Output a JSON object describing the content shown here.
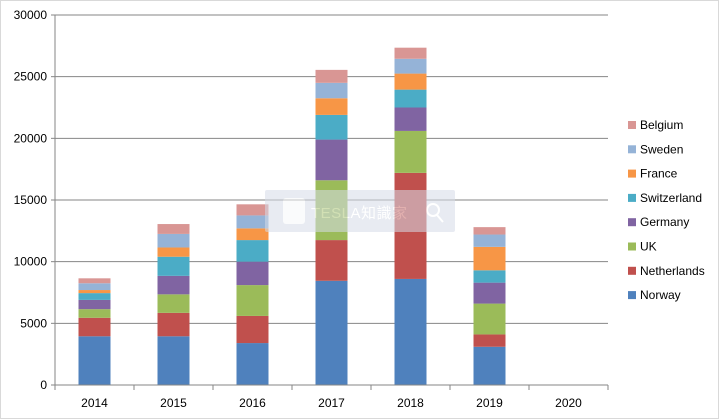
{
  "chart_data": {
    "type": "bar",
    "stacked": true,
    "title": "",
    "xlabel": "",
    "ylabel": "",
    "categories": [
      "2014",
      "2015",
      "2016",
      "2017",
      "2018",
      "2019",
      "2020"
    ],
    "ylim": [
      0,
      30000
    ],
    "yticks": [
      0,
      5000,
      10000,
      15000,
      20000,
      25000,
      30000
    ],
    "grid": "horizontal",
    "legend_position": "right",
    "series": [
      {
        "name": "Norway",
        "color": "#4f81bd",
        "values": [
          3950,
          3950,
          3400,
          8450,
          8600,
          3100,
          0
        ]
      },
      {
        "name": "Netherlands",
        "color": "#c0504d",
        "values": [
          1500,
          1900,
          2200,
          3300,
          8600,
          1000,
          0
        ]
      },
      {
        "name": "UK",
        "color": "#9bbb59",
        "values": [
          700,
          1500,
          2500,
          4850,
          3400,
          2500,
          0
        ]
      },
      {
        "name": "Germany",
        "color": "#8064a2",
        "values": [
          750,
          1500,
          1900,
          3300,
          1900,
          1700,
          0
        ]
      },
      {
        "name": "Switzerland",
        "color": "#4bacc6",
        "values": [
          550,
          1550,
          1750,
          2000,
          1450,
          1000,
          0
        ]
      },
      {
        "name": "France",
        "color": "#f79646",
        "values": [
          250,
          750,
          950,
          1350,
          1300,
          1900,
          0
        ]
      },
      {
        "name": "Sweden",
        "color": "#95b3d7",
        "values": [
          550,
          1100,
          1050,
          1250,
          1200,
          1000,
          0
        ]
      },
      {
        "name": "Belgium",
        "color": "#d99694",
        "values": [
          400,
          800,
          900,
          1050,
          900,
          600,
          0
        ]
      }
    ]
  },
  "watermark": {
    "text": "TESLA知識家",
    "icon": "facebook-icon"
  },
  "colors": {
    "gridline": "#868686",
    "axis": "#868686",
    "frame": "#d9d9d9"
  }
}
